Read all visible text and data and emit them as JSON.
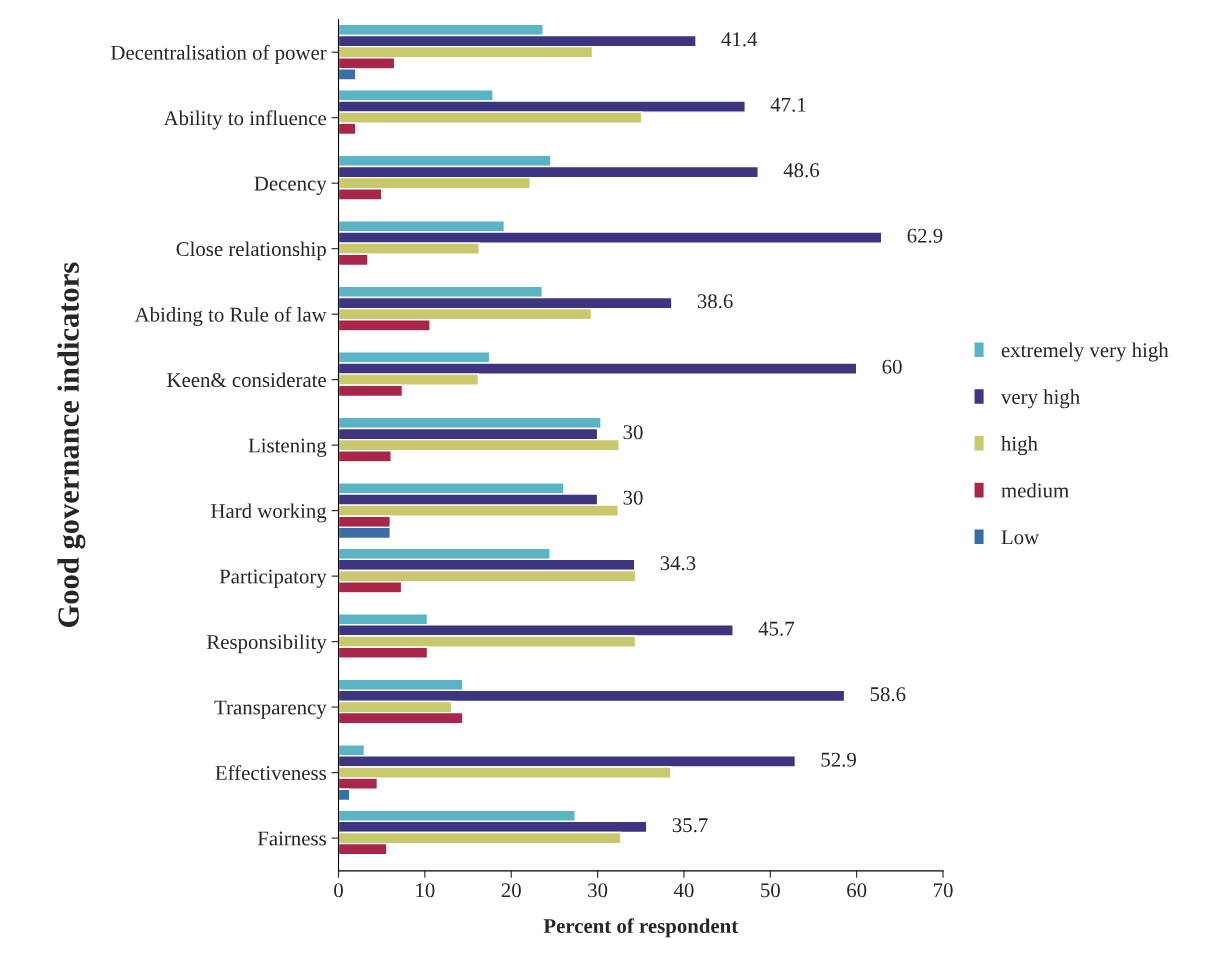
{
  "chart_data": {
    "type": "bar",
    "orientation": "horizontal",
    "xlabel": "Percent of respondent",
    "ylabel": "Good governance indicators",
    "categories": [
      "Decentralisation of power",
      "Ability to influence",
      "Decency",
      "Close relationship",
      "Abiding to Rule of law",
      "Keen& considerate",
      "Listening",
      "Hard working",
      "Participatory",
      "Responsibility",
      "Transparency",
      "Effectiveness",
      "Fairness"
    ],
    "xlim": [
      0,
      70
    ],
    "xticks": [
      0,
      10,
      20,
      30,
      40,
      50,
      60,
      70
    ],
    "grid": false,
    "legend": "right",
    "series": [
      {
        "name": "extremely very high",
        "color": "#5ab4c6",
        "values": [
          23.7,
          17.9,
          24.6,
          19.2,
          23.6,
          17.5,
          30.4,
          26.1,
          24.5,
          10.3,
          14.4,
          3.0,
          27.4
        ]
      },
      {
        "name": "very high",
        "color": "#3d3580",
        "values": [
          41.4,
          47.1,
          48.6,
          62.9,
          38.6,
          60,
          30,
          30,
          34.3,
          45.7,
          58.6,
          52.9,
          35.7
        ],
        "value_labels": [
          "41.4",
          "47.1",
          "48.6",
          "62.9",
          "38.6",
          "60",
          "30",
          "30",
          "34.3",
          "45.7",
          "58.6",
          "52.9",
          "35.7"
        ]
      },
      {
        "name": "high",
        "color": "#c9c86c",
        "values": [
          29.4,
          35.1,
          22.2,
          16.3,
          29.3,
          16.2,
          32.5,
          32.4,
          34.4,
          34.4,
          13.1,
          38.5,
          32.7
        ]
      },
      {
        "name": "medium",
        "color": "#a8264a",
        "values": [
          6.5,
          2.0,
          5.0,
          3.4,
          10.6,
          7.4,
          6.1,
          6.0,
          7.3,
          10.3,
          14.4,
          4.5,
          5.6
        ]
      },
      {
        "name": "Low",
        "color": "#3a6ea5",
        "values": [
          2.0,
          null,
          null,
          null,
          null,
          null,
          null,
          6.0,
          null,
          null,
          null,
          1.3,
          null
        ]
      }
    ]
  }
}
